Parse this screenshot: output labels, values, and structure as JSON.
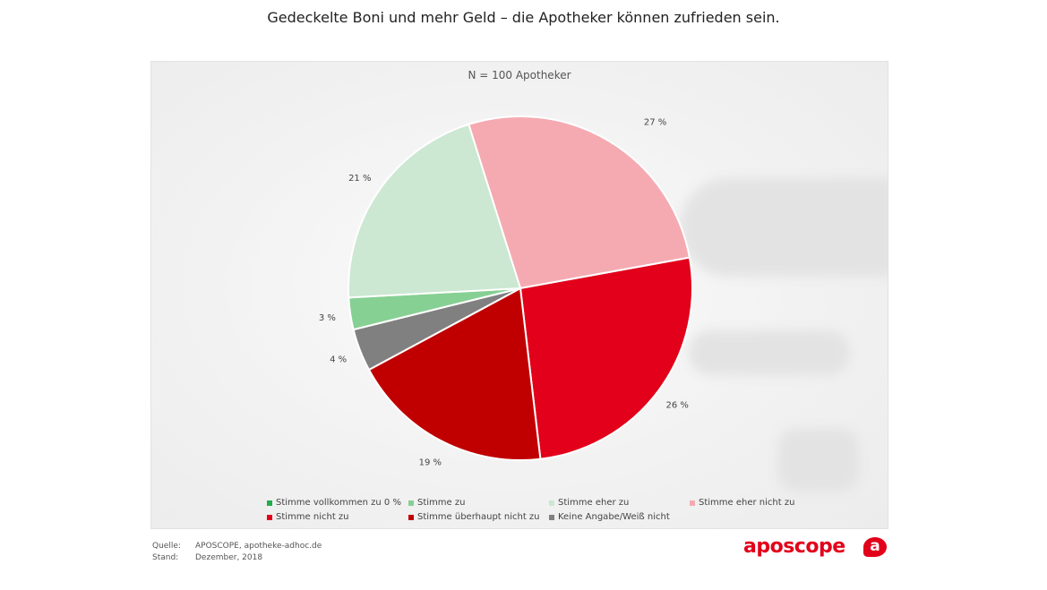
{
  "header": {
    "title": "Gedeckelte Boni und mehr Geld – die Apotheker können zufrieden sein."
  },
  "colors": {
    "vollkommen": "#1fae4b",
    "zu": "#86d093",
    "eher_zu": "#cce7d2",
    "eher_nicht_zu": "#f5aab2",
    "nicht_zu": "#e2001a",
    "ueberhaupt_nicht_zu": "#c00000",
    "keine_angabe": "#808080"
  },
  "chart_data": {
    "type": "pie",
    "title": "Gedeckelte Boni und mehr Geld – die Apotheker können zufrieden sein.",
    "subtitle": "N = 100 Apotheker",
    "slices": [
      {
        "label": "Stimme eher nicht zu",
        "value": 27,
        "display": "27 %",
        "color": "#f5aab2"
      },
      {
        "label": "Stimme nicht zu",
        "value": 26,
        "display": "26 %",
        "color": "#e2001a"
      },
      {
        "label": "Stimme überhaupt nicht zu",
        "value": 19,
        "display": "19 %",
        "color": "#c00000"
      },
      {
        "label": "Keine Angabe/Weiß nicht",
        "value": 4,
        "display": "4 %",
        "color": "#808080"
      },
      {
        "label": "Stimme zu",
        "value": 3,
        "display": "3 %",
        "color": "#86d093"
      },
      {
        "label": "Stimme eher zu",
        "value": 21,
        "display": "21 %",
        "color": "#cce7d2"
      }
    ],
    "legend": [
      {
        "label": "Stimme vollkommen zu 0 %",
        "color": "#1fae4b"
      },
      {
        "label": "Stimme zu",
        "color": "#86d093"
      },
      {
        "label": "Stimme eher zu",
        "color": "#cce7d2"
      },
      {
        "label": "Stimme eher nicht zu",
        "color": "#f5aab2"
      },
      {
        "label": "Stimme nicht zu",
        "color": "#e2001a"
      },
      {
        "label": "Stimme überhaupt nicht zu",
        "color": "#c00000"
      },
      {
        "label": "Keine Angabe/Weiß nicht",
        "color": "#808080"
      }
    ],
    "legend_position": "bottom"
  },
  "footer": {
    "source_label": "Quelle:",
    "source_value": "APOSCOPE, apotheke-adhoc.de",
    "date_label": "Stand:",
    "date_value": "Dezember, 2018"
  },
  "brand": {
    "name": "aposcope",
    "badge": "a"
  }
}
